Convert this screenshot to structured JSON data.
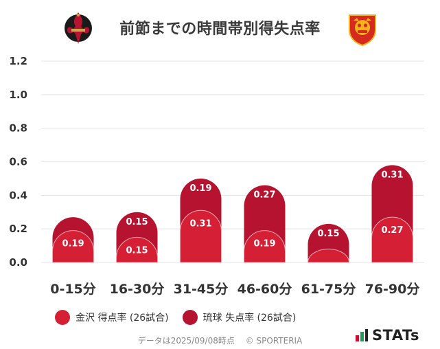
{
  "header": {
    "title": "前節までの時間帯別得失点率"
  },
  "chart_data": {
    "type": "bar",
    "stacked": true,
    "categories": [
      "0-15分",
      "16-30分",
      "31-45分",
      "46-60分",
      "61-75分",
      "76-90分"
    ],
    "series": [
      {
        "name": "金沢 得点率 (26試合)",
        "values": [
          0.19,
          0.15,
          0.31,
          0.19,
          0.08,
          0.27
        ],
        "data_labels": [
          "0.19",
          "0.15",
          "0.31",
          "0.19",
          "",
          "0.27"
        ],
        "color": "#d41f35"
      },
      {
        "name": "琉球 失点率 (26試合)",
        "values": [
          0.08,
          0.15,
          0.19,
          0.27,
          0.15,
          0.31
        ],
        "data_labels": [
          "",
          "0.15",
          "0.19",
          "0.27",
          "0.15",
          "0.31"
        ],
        "color": "#b5132f"
      }
    ],
    "yticks": [
      "0.0",
      "0.2",
      "0.4",
      "0.6",
      "0.8",
      "1.0",
      "1.2"
    ],
    "ylim": [
      0,
      1.2
    ],
    "grid": true,
    "legend_position": "bottom-left"
  },
  "legend": {
    "items": [
      {
        "label": "金沢 得点率 (26試合)",
        "color": "#d41f35"
      },
      {
        "label": "琉球 失点率 (26試合)",
        "color": "#b5132f"
      }
    ]
  },
  "footer": {
    "date": "データは2025/09/08時点",
    "copyright": "© SPORTERIA"
  },
  "brand": {
    "stats_label": "STATs"
  }
}
